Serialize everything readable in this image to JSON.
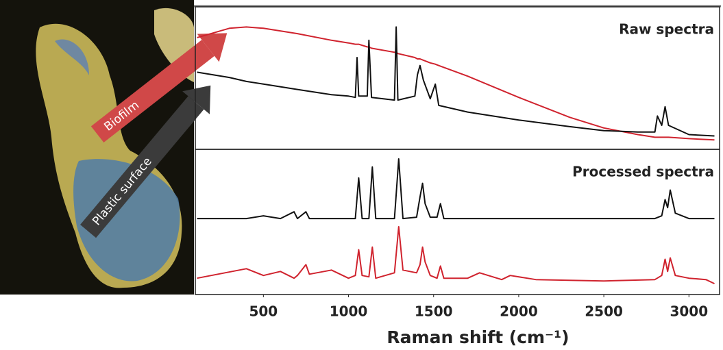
{
  "chart_data": [
    {
      "type": "line",
      "title": "Raw spectra",
      "x": [
        110,
        300,
        400,
        500,
        700,
        900,
        1000,
        1040,
        1050,
        1060,
        1110,
        1120,
        1135,
        1270,
        1280,
        1290,
        1390,
        1405,
        1420,
        1440,
        1480,
        1510,
        1530,
        1700,
        2000,
        2300,
        2500,
        2700,
        2800,
        2815,
        2840,
        2860,
        2880,
        3000,
        3150
      ],
      "series": [
        {
          "name": "Biofilm",
          "color": "#d0232e",
          "values": [
            82,
            89,
            90,
            89,
            85,
            80,
            78,
            77,
            77,
            77,
            75,
            75,
            74,
            71,
            71,
            70,
            67,
            66,
            66,
            65,
            63,
            62,
            61,
            53,
            37,
            22,
            14,
            9,
            7,
            7,
            7,
            7,
            7,
            6,
            5
          ]
        },
        {
          "name": "Plastic surface",
          "color": "#111111",
          "values": [
            56,
            52,
            49,
            47,
            43,
            39,
            38,
            37,
            67,
            38,
            38,
            80,
            37,
            35,
            90,
            35,
            38,
            54,
            61,
            50,
            36,
            47,
            31,
            26,
            20,
            15,
            12,
            11,
            11,
            23,
            16,
            30,
            16,
            9,
            8
          ]
        }
      ],
      "xlim": [
        100,
        3180
      ],
      "ylim": [
        0,
        100
      ]
    },
    {
      "type": "line",
      "title": "Processed spectra",
      "xlabel": "Raman shift (cm⁻¹)",
      "x": [
        110,
        400,
        500,
        600,
        680,
        700,
        750,
        770,
        900,
        1000,
        1040,
        1060,
        1080,
        1120,
        1140,
        1160,
        1270,
        1295,
        1320,
        1400,
        1420,
        1435,
        1450,
        1480,
        1520,
        1540,
        1560,
        1700,
        1770,
        1900,
        1950,
        2100,
        2500,
        2800,
        2840,
        2860,
        2875,
        2890,
        2920,
        3000,
        3100,
        3150
      ],
      "series": [
        {
          "color": "#111111",
          "values": [
            54,
            54,
            56,
            54,
            59,
            54,
            59,
            54,
            54,
            54,
            54,
            84,
            54,
            54,
            92,
            54,
            54,
            98,
            54,
            55,
            70,
            80,
            65,
            55,
            55,
            65,
            54,
            54,
            54,
            54,
            54,
            54,
            54,
            54,
            56,
            68,
            62,
            75,
            58,
            54,
            54,
            54
          ]
        },
        {
          "color": "#d0232e",
          "values": [
            10,
            17,
            12,
            15,
            10,
            12,
            20,
            13,
            16,
            10,
            12,
            31,
            12,
            11,
            33,
            10,
            14,
            48,
            16,
            14,
            20,
            33,
            22,
            12,
            10,
            19,
            10,
            10,
            14,
            9,
            12,
            9,
            8,
            9,
            12,
            24,
            15,
            25,
            12,
            10,
            9,
            6
          ]
        }
      ],
      "xlim": [
        100,
        3180
      ],
      "ylim": [
        0,
        100
      ],
      "xticks": [
        500,
        1000,
        1500,
        2000,
        2500,
        3000
      ]
    }
  ]
}
